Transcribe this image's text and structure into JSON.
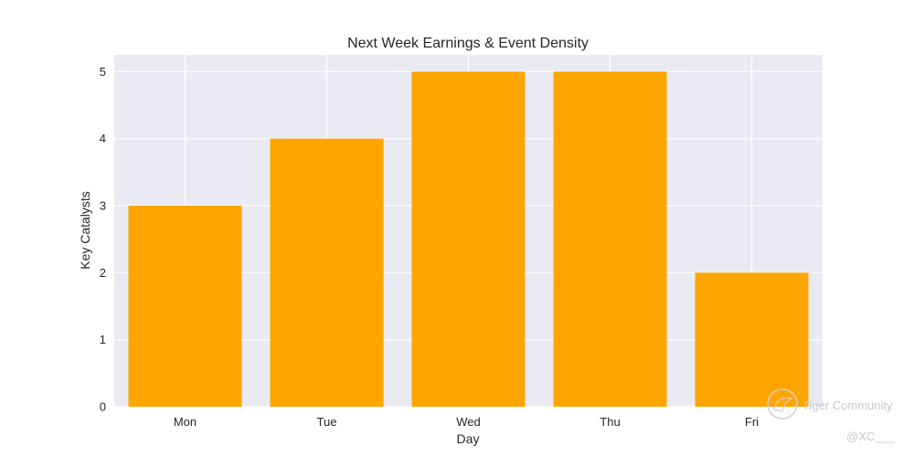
{
  "chart_data": {
    "type": "bar",
    "title": "Next Week Earnings & Event Density",
    "xlabel": "Day",
    "ylabel": "Key Catalysts",
    "categories": [
      "Mon",
      "Tue",
      "Wed",
      "Thu",
      "Fri"
    ],
    "values": [
      3,
      4,
      5,
      5,
      2
    ],
    "yticks": [
      "0",
      "1",
      "2",
      "3",
      "4",
      "5"
    ],
    "ylim": [
      0,
      5.25
    ],
    "grid": true,
    "bar_color": "#FFA500",
    "background_color": "#EAEAF2",
    "grid_color": "#FFFFFF"
  },
  "watermark": {
    "brand": "Tiger Community",
    "handle": "@XC___",
    "icon": "tiger-logo-icon"
  }
}
